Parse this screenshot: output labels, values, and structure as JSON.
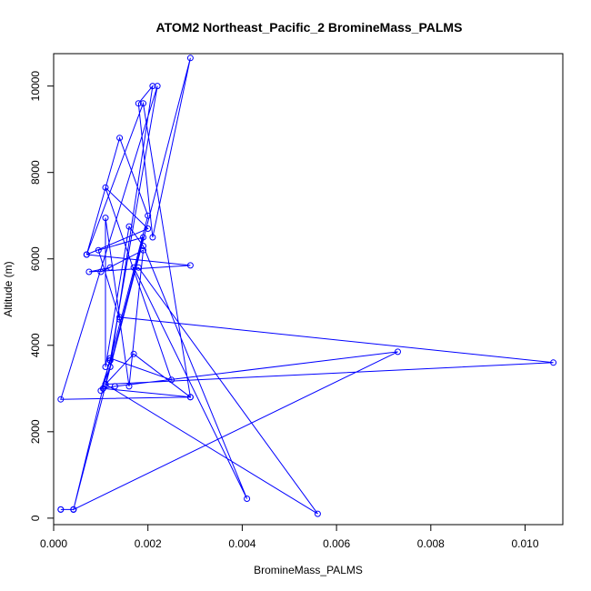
{
  "chart_data": {
    "type": "line",
    "title": "ATOM2 Northeast_Pacific_2 BromineMass_PALMS",
    "xlabel": "BromineMass_PALMS",
    "ylabel": "Altitude (m)",
    "xlim": [
      0,
      0.0108
    ],
    "ylim": [
      -150,
      10750
    ],
    "x_ticks": [
      "0.000",
      "0.002",
      "0.004",
      "0.006",
      "0.008",
      "0.010"
    ],
    "x_tick_values": [
      0,
      0.002,
      0.004,
      0.006,
      0.008,
      0.01
    ],
    "y_ticks": [
      "0",
      "2000",
      "4000",
      "6000",
      "8000",
      "10000"
    ],
    "y_tick_values": [
      0,
      2000,
      4000,
      6000,
      8000,
      10000
    ],
    "grid": false,
    "legend": "none",
    "color": "#0000ff",
    "series": [
      {
        "x": [
          0.00015,
          0.00015,
          0.00042,
          0.00042,
          0.0029,
          0.0021,
          0.0018,
          0.0021,
          0.0012,
          0.001,
          0.0012,
          0.002,
          0.0014,
          0.0007,
          0.0019,
          0.0029,
          0.0017,
          0.0011,
          0.0106,
          0.0014,
          0.0011,
          0.0011,
          0.0016,
          0.0019,
          0.0041,
          0.0017,
          0.0018,
          0.0056,
          0.0011,
          0.0019,
          0.00095,
          0.0014,
          0.0016,
          0.0019,
          0.001,
          0.0012,
          0.00075,
          0.0029,
          0.0007,
          0.002,
          0.0011,
          0.0025,
          0.0012,
          0.00042,
          0.0073,
          0.0013,
          0.00105,
          0.0029,
          0.00015,
          0.0022,
          0.0012
        ],
        "y": [
          200,
          200,
          200,
          200,
          10650,
          6500,
          9600,
          10000,
          3500,
          2950,
          3650,
          7000,
          8800,
          6100,
          9600,
          2800,
          3800,
          3100,
          3600,
          4650,
          6950,
          3500,
          6750,
          6300,
          450,
          5800,
          5800,
          100,
          3100,
          6500,
          6200,
          4600,
          3050,
          6200,
          5700,
          5800,
          5700,
          5850,
          6100,
          6700,
          7650,
          3200,
          3700,
          200,
          3850,
          3050,
          3000,
          2800,
          2750,
          10000,
          3650
        ]
      }
    ]
  }
}
